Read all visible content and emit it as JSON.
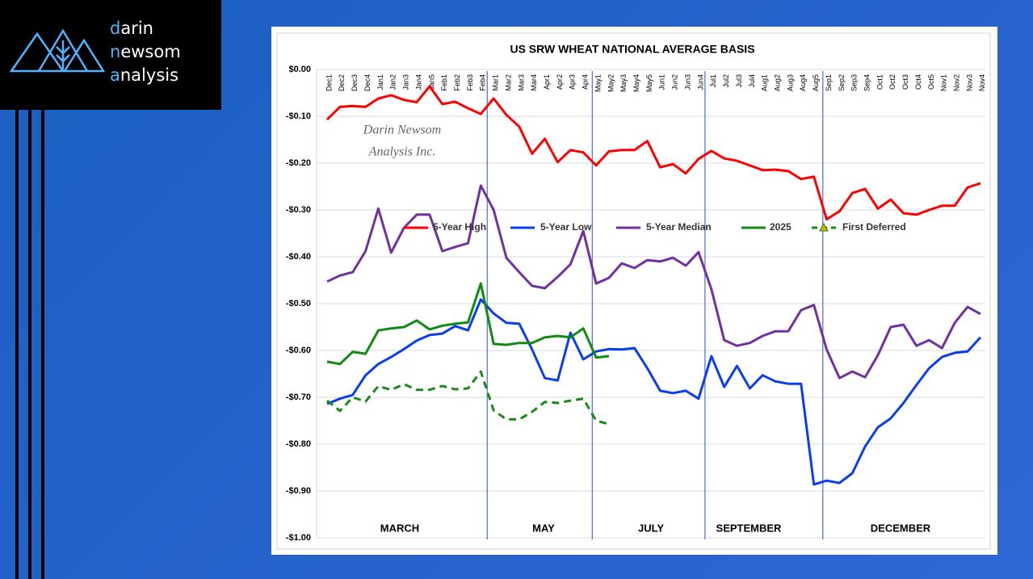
{
  "logo": {
    "lines": [
      "darin",
      "newsom",
      "analysis"
    ]
  },
  "chart_data": {
    "type": "line",
    "title": "US SRW WHEAT NATIONAL AVERAGE BASIS",
    "watermark": [
      "Darin Newsom",
      "Analysis Inc."
    ],
    "periods": [
      "MARCH",
      "MAY",
      "JULY",
      "SEPTEMBER",
      "DECEMBER"
    ],
    "categories": [
      "Dec1",
      "Dec2",
      "Dec3",
      "Dec4",
      "Jan1",
      "Jan2",
      "Jan3",
      "Jan4",
      "Jan5",
      "Feb1",
      "Feb2",
      "Feb3",
      "Feb4",
      "Mar1",
      "Mar2",
      "Mar3",
      "Mar4",
      "Apr1",
      "Apr2",
      "Apr3",
      "Apr4",
      "May1",
      "May2",
      "May3",
      "May4",
      "May5",
      "Jun1",
      "Jun2",
      "Jun3",
      "Jun4",
      "Jul1",
      "Jul2",
      "Jul3",
      "Jul4",
      "Aug1",
      "Aug2",
      "Aug3",
      "Aug4",
      "Aug5",
      "Sep1",
      "Sep2",
      "Sep3",
      "Sep4",
      "Oct1",
      "Oct2",
      "Oct3",
      "Oct4",
      "Oct5",
      "Nov1",
      "Nov2",
      "Nov3",
      "Nov4"
    ],
    "ylim": [
      -1,
      0
    ],
    "yticks": [
      {
        "value": 0,
        "label": "$0.00"
      },
      {
        "value": -0.1,
        "label": "-$0.10"
      },
      {
        "value": -0.2,
        "label": "-$0.20"
      },
      {
        "value": -0.3,
        "label": "-$0.30"
      },
      {
        "value": -0.4,
        "label": "-$0.40"
      },
      {
        "value": -0.5,
        "label": "-$0.50"
      },
      {
        "value": -0.6,
        "label": "-$0.60"
      },
      {
        "value": -0.7,
        "label": "-$0.70"
      },
      {
        "value": -0.8,
        "label": "-$0.80"
      },
      {
        "value": -0.9,
        "label": "-$0.90"
      },
      {
        "value": -1,
        "label": "-$1.00"
      }
    ],
    "grid": true,
    "series": [
      {
        "name": "5-Year High",
        "color": "#ff0000",
        "style": "solid",
        "values": [
          -0.107,
          -0.08,
          -0.078,
          -0.08,
          -0.062,
          -0.055,
          -0.065,
          -0.07,
          -0.036,
          -0.074,
          -0.069,
          -0.083,
          -0.095,
          -0.062,
          -0.097,
          -0.122,
          -0.18,
          -0.148,
          -0.198,
          -0.172,
          -0.177,
          -0.205,
          -0.175,
          -0.172,
          -0.172,
          -0.153,
          -0.209,
          -0.202,
          -0.222,
          -0.191,
          -0.174,
          -0.19,
          -0.195,
          -0.205,
          -0.215,
          -0.214,
          -0.217,
          -0.234,
          -0.229,
          -0.32,
          -0.303,
          -0.264,
          -0.255,
          -0.297,
          -0.278,
          -0.307,
          -0.31,
          -0.3,
          -0.291,
          -0.291,
          -0.252,
          -0.243
        ]
      },
      {
        "name": "5-Year Low",
        "color": "#0a3cf0",
        "style": "solid",
        "values": [
          -0.714,
          -0.703,
          -0.695,
          -0.653,
          -0.629,
          -0.614,
          -0.597,
          -0.579,
          -0.567,
          -0.564,
          -0.548,
          -0.557,
          -0.491,
          -0.521,
          -0.541,
          -0.543,
          -0.598,
          -0.659,
          -0.664,
          -0.562,
          -0.619,
          -0.602,
          -0.597,
          -0.598,
          -0.595,
          -0.638,
          -0.686,
          -0.691,
          -0.686,
          -0.703,
          -0.612,
          -0.678,
          -0.633,
          -0.681,
          -0.653,
          -0.666,
          -0.671,
          -0.671,
          -0.886,
          -0.878,
          -0.883,
          -0.862,
          -0.805,
          -0.764,
          -0.745,
          -0.712,
          -0.674,
          -0.638,
          -0.614,
          -0.605,
          -0.602,
          -0.572
        ]
      },
      {
        "name": "5-Year Median",
        "color": "#7030a0",
        "style": "solid",
        "values": [
          -0.453,
          -0.44,
          -0.433,
          -0.388,
          -0.297,
          -0.391,
          -0.338,
          -0.31,
          -0.31,
          -0.388,
          -0.379,
          -0.371,
          -0.248,
          -0.3,
          -0.402,
          -0.433,
          -0.462,
          -0.467,
          -0.443,
          -0.416,
          -0.345,
          -0.457,
          -0.445,
          -0.414,
          -0.424,
          -0.407,
          -0.41,
          -0.402,
          -0.419,
          -0.39,
          -0.469,
          -0.578,
          -0.59,
          -0.584,
          -0.569,
          -0.559,
          -0.559,
          -0.514,
          -0.503,
          -0.598,
          -0.659,
          -0.645,
          -0.657,
          -0.61,
          -0.55,
          -0.545,
          -0.59,
          -0.578,
          -0.595,
          -0.541,
          -0.507,
          -0.522
        ]
      },
      {
        "name": "2025",
        "color": "#108a10",
        "style": "solid",
        "values": [
          -0.624,
          -0.629,
          -0.603,
          -0.607,
          -0.557,
          -0.553,
          -0.55,
          -0.536,
          -0.555,
          -0.547,
          -0.543,
          -0.54,
          -0.457,
          -0.586,
          -0.588,
          -0.584,
          -0.584,
          -0.572,
          -0.569,
          -0.572,
          -0.553,
          -0.615,
          -0.612,
          null,
          null,
          null,
          null,
          null,
          null,
          null,
          null,
          null,
          null,
          null,
          null,
          null,
          null,
          null,
          null,
          null,
          null,
          null,
          null,
          null,
          null,
          null,
          null,
          null,
          null,
          null,
          null,
          null
        ]
      },
      {
        "name": "First Deferred",
        "color": "#1a8a1a",
        "style": "dashed",
        "values": [
          -0.707,
          -0.729,
          -0.7,
          -0.709,
          -0.676,
          -0.684,
          -0.672,
          -0.684,
          -0.684,
          -0.676,
          -0.683,
          -0.681,
          -0.645,
          -0.728,
          -0.747,
          -0.747,
          -0.731,
          -0.71,
          -0.712,
          -0.707,
          -0.703,
          -0.75,
          -0.757,
          null,
          null,
          null,
          null,
          null,
          null,
          null,
          null,
          null,
          null,
          null,
          null,
          null,
          null,
          null,
          null,
          null,
          null,
          null,
          null,
          null,
          null,
          null,
          null,
          null,
          null,
          null,
          null,
          null
        ]
      }
    ]
  }
}
